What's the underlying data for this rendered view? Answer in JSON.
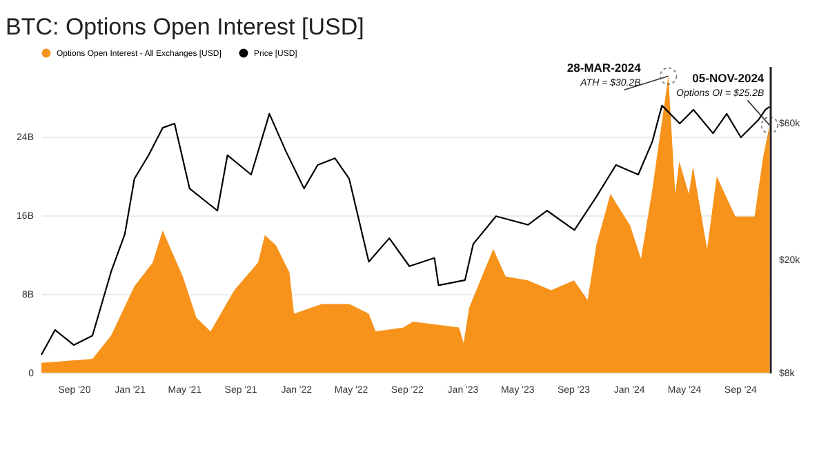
{
  "chart_data": {
    "type": "area",
    "title": "BTC: Options Open Interest [USD]",
    "xlim": [
      "2020-06-22",
      "2024-11-06"
    ],
    "xticks": [
      {
        "value": "2020-09",
        "label": "Sep '20"
      },
      {
        "value": "2021-01",
        "label": "Jan '21"
      },
      {
        "value": "2021-05",
        "label": "May '21"
      },
      {
        "value": "2021-09",
        "label": "Sep '21"
      },
      {
        "value": "2022-01",
        "label": "Jan '22"
      },
      {
        "value": "2022-05",
        "label": "May '22"
      },
      {
        "value": "2022-09",
        "label": "Sep '22"
      },
      {
        "value": "2023-01",
        "label": "Jan '23"
      },
      {
        "value": "2023-05",
        "label": "May '23"
      },
      {
        "value": "2023-09",
        "label": "Sep '23"
      },
      {
        "value": "2024-01",
        "label": "Jan '24"
      },
      {
        "value": "2024-05",
        "label": "May '24"
      },
      {
        "value": "2024-09",
        "label": "Sep '24"
      }
    ],
    "ylim": [
      0,
      31.2
    ],
    "yticks": [
      0,
      {
        "value": 8,
        "label": "8B"
      },
      {
        "value": 16,
        "label": "16B"
      },
      {
        "value": 24,
        "label": "24B"
      }
    ],
    "y2lim": [
      8000,
      95000
    ],
    "y2ticks": [
      {
        "value": 8000,
        "label": "$8k"
      },
      {
        "value": 20000,
        "label": "$20k"
      },
      {
        "value": 60000,
        "label": "$60k"
      }
    ],
    "log": "y2",
    "grid": "y",
    "legend": "top left",
    "series": [
      {
        "name": "Options Open Interest - All Exchanges [USD]",
        "color": "#f7931a",
        "x": [
          "2020-06-22",
          "2020-10-12",
          "2020-11-22",
          "2021-01-12",
          "2021-02-21",
          "2021-03-15",
          "2021-04-28",
          "2021-05-28",
          "2021-06-28",
          "2021-08-19",
          "2021-10-10",
          "2021-10-25",
          "2021-11-18",
          "2021-12-18",
          "2021-12-28",
          "2022-02-27",
          "2022-04-28",
          "2022-06-10",
          "2022-06-25",
          "2022-08-25",
          "2022-09-15",
          "2022-12-25",
          "2023-01-04",
          "2023-01-16",
          "2023-03-10",
          "2023-04-06",
          "2023-05-25",
          "2023-07-15",
          "2023-09-03",
          "2023-10-03",
          "2023-10-22",
          "2023-11-22",
          "2024-01-04",
          "2024-01-28",
          "2024-02-22",
          "2024-03-28",
          "2024-04-12",
          "2024-04-21",
          "2024-05-12",
          "2024-05-21",
          "2024-06-21",
          "2024-07-12",
          "2024-08-22",
          "2024-10-03",
          "2024-10-22",
          "2024-11-05"
        ],
        "values": [
          1.0,
          1.4,
          3.8,
          8.8,
          11.2,
          14.5,
          9.8,
          5.6,
          4.2,
          8.4,
          11.2,
          14,
          13,
          10.2,
          6,
          7,
          7,
          6,
          4.2,
          4.6,
          5.2,
          4.6,
          3.0,
          6.6,
          12.6,
          9.8,
          9.4,
          8.4,
          9.4,
          7.4,
          13,
          18.2,
          15,
          11.6,
          18.7,
          30.2,
          18.2,
          21.5,
          18.2,
          21,
          12.6,
          20,
          15.9,
          15.9,
          22,
          25.2
        ]
      },
      {
        "name": "Price [USD]",
        "type": "line",
        "axis": "y2",
        "color": "#000000",
        "x": [
          "2020-06-22",
          "2020-07-22",
          "2020-09-01",
          "2020-10-12",
          "2020-11-22",
          "2020-12-22",
          "2021-01-12",
          "2021-02-12",
          "2021-03-15",
          "2021-04-10",
          "2021-05-13",
          "2021-07-13",
          "2021-08-04",
          "2021-09-25",
          "2021-11-04",
          "2021-12-10",
          "2022-01-19",
          "2022-02-18",
          "2022-03-28",
          "2022-04-28",
          "2022-06-10",
          "2022-07-25",
          "2022-09-07",
          "2022-11-01",
          "2022-11-10",
          "2023-01-07",
          "2023-01-25",
          "2023-03-16",
          "2023-05-25",
          "2023-07-06",
          "2023-09-04",
          "2023-10-22",
          "2023-12-04",
          "2024-01-22",
          "2024-02-22",
          "2024-03-14",
          "2024-04-22",
          "2024-05-22",
          "2024-07-04",
          "2024-08-03",
          "2024-09-03",
          "2024-10-12",
          "2024-10-27",
          "2024-11-05"
        ],
        "values": [
          9250,
          11300,
          10000,
          10800,
          18100,
          24500,
          38300,
          46300,
          57800,
          59800,
          35400,
          29600,
          46300,
          39600,
          64700,
          47900,
          35400,
          42800,
          45200,
          38300,
          19600,
          23700,
          18900,
          20200,
          16200,
          16900,
          22600,
          28300,
          26400,
          29600,
          25300,
          33100,
          42800,
          39600,
          51800,
          69200,
          59800,
          66900,
          55300,
          64700,
          53500,
          61800,
          66900,
          68500
        ]
      }
    ],
    "annotations": [
      {
        "text": "28-MAR-2024",
        "x": "2024-03-28",
        "y": 30.2
      },
      {
        "text": "ATH = $30.2B",
        "x": "2024-03-28",
        "y": 30.2
      },
      {
        "text": "05-NOV-2024",
        "x": "2024-11-05",
        "y": 25.2
      },
      {
        "text": "Options OI = $25.2B",
        "x": "2024-11-05",
        "y": 25.2
      }
    ]
  }
}
